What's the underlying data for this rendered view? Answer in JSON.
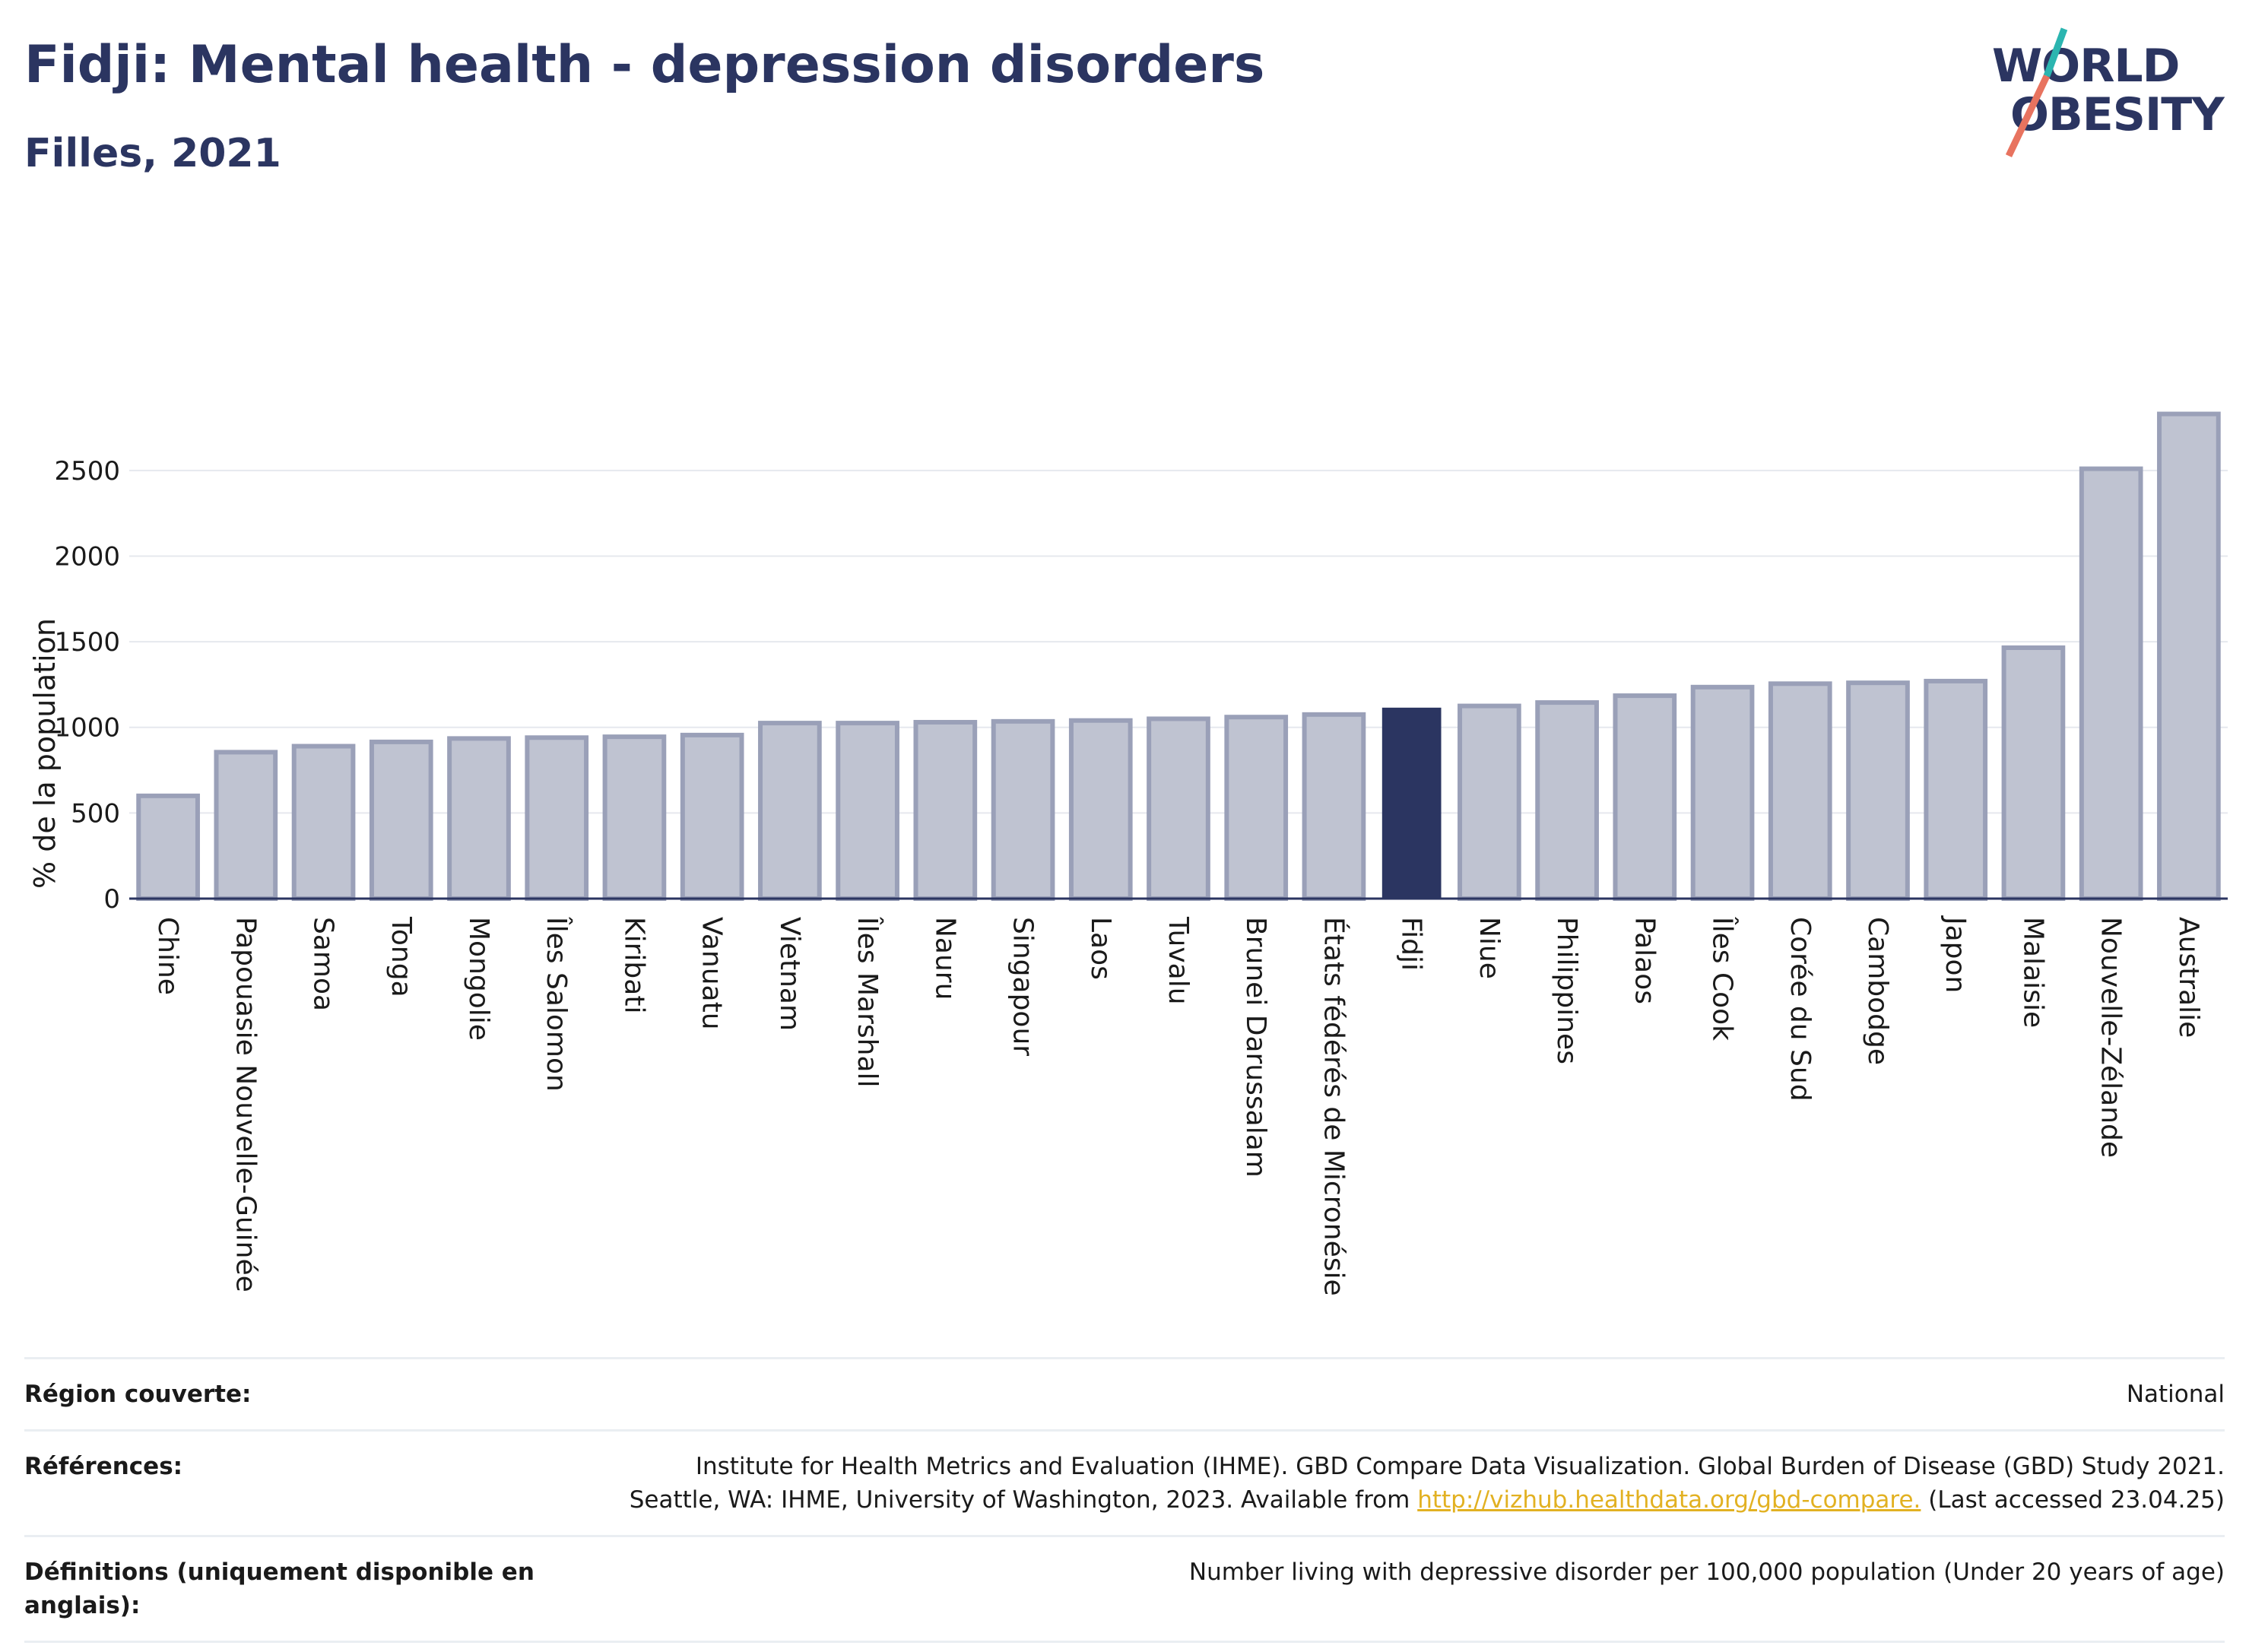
{
  "header": {
    "title": "Fidji: Mental health - depression disorders",
    "subtitle": "Filles, 2021"
  },
  "logo": {
    "line1": "WORLD",
    "line2": "OBESITY",
    "accent_teal": "#2bb5b0",
    "accent_coral": "#e8735f"
  },
  "colors": {
    "highlight_bar": "#2b3561",
    "other_bar_fill": "#bfc3d1",
    "other_bar_stroke": "#9aa0b8"
  },
  "chart_data": {
    "type": "bar",
    "ylabel": "% de la population",
    "ylim": [
      0,
      2850
    ],
    "yticks": [
      0,
      500,
      1000,
      1500,
      2000,
      2500
    ],
    "highlight": "Fidji",
    "categories": [
      "Chine",
      "Papouasie Nouvelle-Guinée",
      "Samoa",
      "Tonga",
      "Mongolie",
      "Îles Salomon",
      "Kiribati",
      "Vanuatu",
      "Vietnam",
      "Îles Marshall",
      "Nauru",
      "Singapour",
      "Laos",
      "Tuvalu",
      "Brunei Darussalam",
      "États fédérés de Micronésie",
      "Fidji",
      "Niue",
      "Philippines",
      "Palaos",
      "Îles Cook",
      "Corée du Sud",
      "Cambodge",
      "Japon",
      "Malaisie",
      "Nouvelle-Zélande",
      "Australie"
    ],
    "values": [
      600,
      855,
      890,
      915,
      935,
      940,
      945,
      955,
      1025,
      1025,
      1030,
      1035,
      1040,
      1050,
      1060,
      1075,
      1115,
      1125,
      1145,
      1185,
      1235,
      1255,
      1260,
      1270,
      1465,
      2510,
      2830
    ]
  },
  "footer": {
    "region_label": "Région couverte:",
    "region_value": "National",
    "references_label": "Références:",
    "references_line1": "Institute for Health Metrics and Evaluation (IHME). GBD Compare Data Visualization. Global Burden of Disease (GBD) Study 2021.",
    "references_line2_prefix": "Seattle, WA: IHME, University of Washington, 2023. Available from ",
    "references_link": "http://vizhub.healthdata.org/gbd-compare.",
    "references_suffix": " (Last accessed 23.04.25)",
    "definitions_label": "Définitions (uniquement disponible en anglais):",
    "definitions_value": "Number living with depressive disorder per 100,000 population (Under 20 years of age)"
  }
}
